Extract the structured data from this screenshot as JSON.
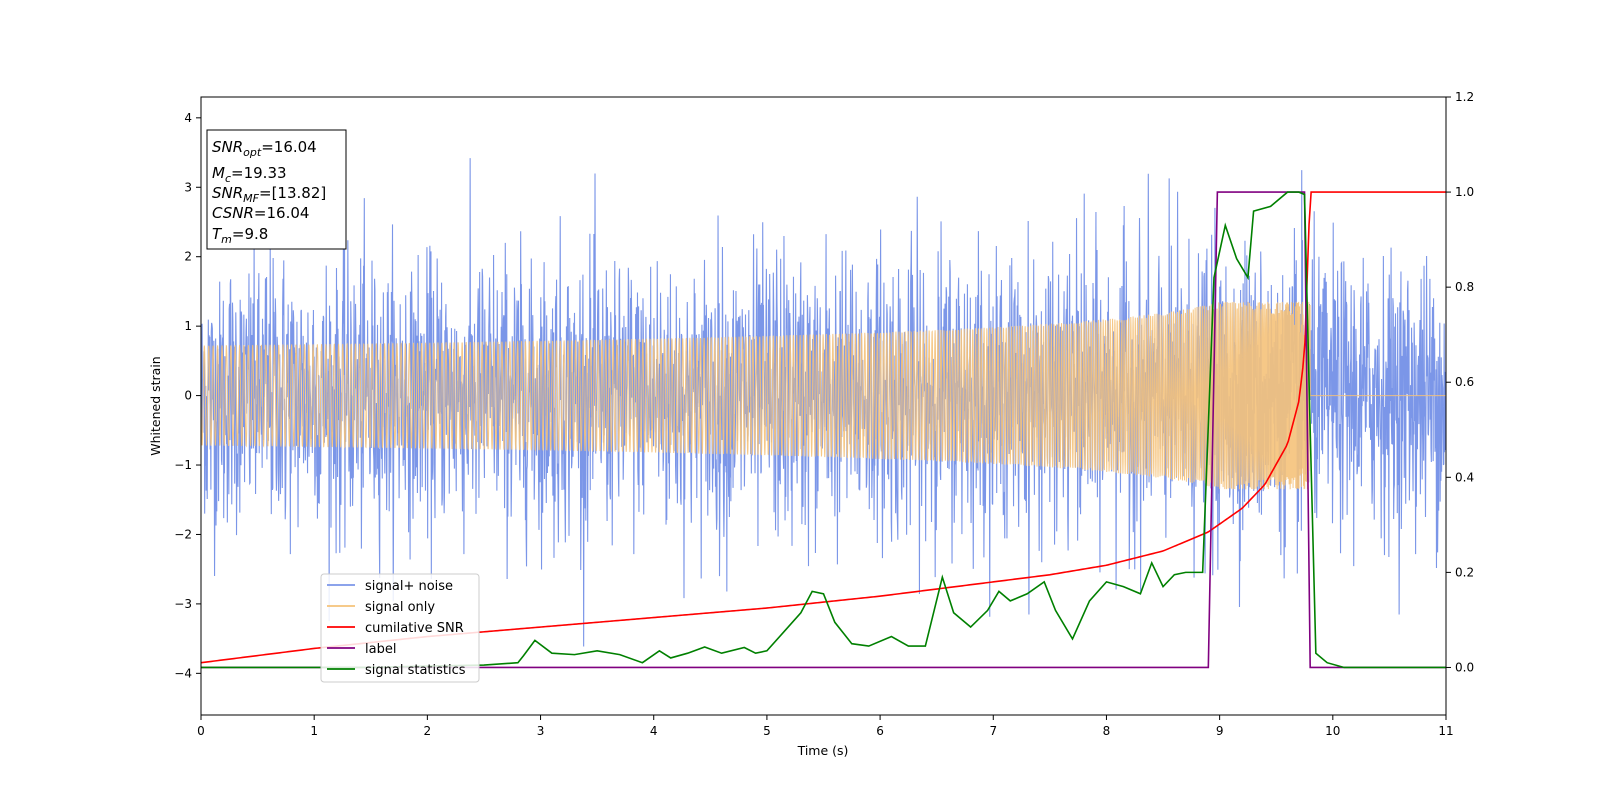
{
  "chart_data": {
    "type": "line",
    "xlabel": "Time (s)",
    "ylabel": "Whitened strain",
    "xlim": [
      0,
      11
    ],
    "ylim_left": [
      -4.6,
      4.3
    ],
    "ylim_right": [
      -0.1,
      1.2
    ],
    "xticks": [
      "0",
      "1",
      "2",
      "3",
      "4",
      "5",
      "6",
      "7",
      "8",
      "9",
      "10",
      "11"
    ],
    "yticks_left": [
      "−4",
      "−3",
      "−2",
      "−1",
      "0",
      "1",
      "2",
      "3",
      "4"
    ],
    "yticks_right": [
      "0.0",
      "0.2",
      "0.4",
      "0.6",
      "0.8",
      "1.0",
      "1.2"
    ],
    "legend_position": "lower-left",
    "legend": [
      "signal+ noise",
      "signal only",
      "cumilative SNR",
      "label",
      "signal statistics"
    ],
    "annotation": {
      "lines": [
        {
          "base": "SNR",
          "sub": "opt",
          "value": "=16.04"
        },
        {
          "base": "M",
          "sub": "c",
          "value": "=19.33"
        },
        {
          "base": "SNR",
          "sub": "MF",
          "value": "=[13.82]"
        },
        {
          "base": "CSNR",
          "sub": "",
          "value": "=16.04"
        },
        {
          "base": "T",
          "sub": "m",
          "value": "=9.8"
        }
      ]
    },
    "series": [
      {
        "name": "signal+ noise",
        "axis": "left",
        "color": "#7b96e8",
        "description_noise_std": 0.95,
        "x_range": [
          0,
          11
        ]
      },
      {
        "name": "signal only",
        "axis": "left",
        "color": "#f5c27a",
        "chirp_end": 9.8,
        "amplitude_at_end": 1.3
      },
      {
        "name": "cumilative SNR",
        "axis": "right",
        "color": "#ff0000",
        "x": [
          0,
          1,
          2,
          3,
          4,
          5,
          6,
          7,
          7.5,
          8,
          8.5,
          8.9,
          9.2,
          9.4,
          9.6,
          9.7,
          9.75,
          9.8,
          11
        ],
        "y": [
          0.01,
          0.04,
          0.065,
          0.085,
          0.105,
          0.125,
          0.15,
          0.18,
          0.195,
          0.215,
          0.245,
          0.285,
          0.335,
          0.385,
          0.47,
          0.56,
          0.66,
          1.0,
          1.0
        ]
      },
      {
        "name": "label",
        "axis": "right",
        "color": "#800080",
        "x": [
          0,
          8.9,
          8.98,
          9.75,
          9.8,
          11
        ],
        "y": [
          0.0,
          0.0,
          1.0,
          1.0,
          0.0,
          0.0
        ]
      },
      {
        "name": "signal statistics",
        "axis": "right",
        "color": "#008000",
        "x": [
          0,
          0.5,
          1,
          1.5,
          2,
          2.5,
          2.8,
          2.85,
          2.95,
          3.1,
          3.3,
          3.5,
          3.7,
          3.9,
          4.05,
          4.15,
          4.3,
          4.45,
          4.6,
          4.8,
          4.9,
          5.0,
          5.15,
          5.3,
          5.4,
          5.5,
          5.6,
          5.75,
          5.9,
          6.1,
          6.25,
          6.4,
          6.55,
          6.65,
          6.8,
          6.95,
          7.05,
          7.15,
          7.3,
          7.45,
          7.55,
          7.7,
          7.85,
          8.0,
          8.15,
          8.3,
          8.4,
          8.5,
          8.6,
          8.7,
          8.85,
          8.95,
          9.05,
          9.15,
          9.25,
          9.3,
          9.45,
          9.6,
          9.7,
          9.75,
          9.8,
          9.85,
          9.95,
          10.1,
          11
        ],
        "y": [
          0.0,
          0.0,
          0.0,
          0.0,
          0.003,
          0.005,
          0.01,
          0.025,
          0.057,
          0.03,
          0.027,
          0.035,
          0.027,
          0.01,
          0.035,
          0.02,
          0.03,
          0.043,
          0.03,
          0.042,
          0.03,
          0.035,
          0.075,
          0.115,
          0.16,
          0.155,
          0.095,
          0.05,
          0.045,
          0.065,
          0.045,
          0.045,
          0.19,
          0.115,
          0.085,
          0.12,
          0.16,
          0.14,
          0.155,
          0.18,
          0.12,
          0.06,
          0.14,
          0.18,
          0.17,
          0.155,
          0.22,
          0.17,
          0.195,
          0.2,
          0.2,
          0.82,
          0.93,
          0.86,
          0.82,
          0.96,
          0.97,
          1.0,
          1.0,
          0.995,
          0.5,
          0.03,
          0.01,
          0.0,
          0.0
        ]
      }
    ]
  }
}
